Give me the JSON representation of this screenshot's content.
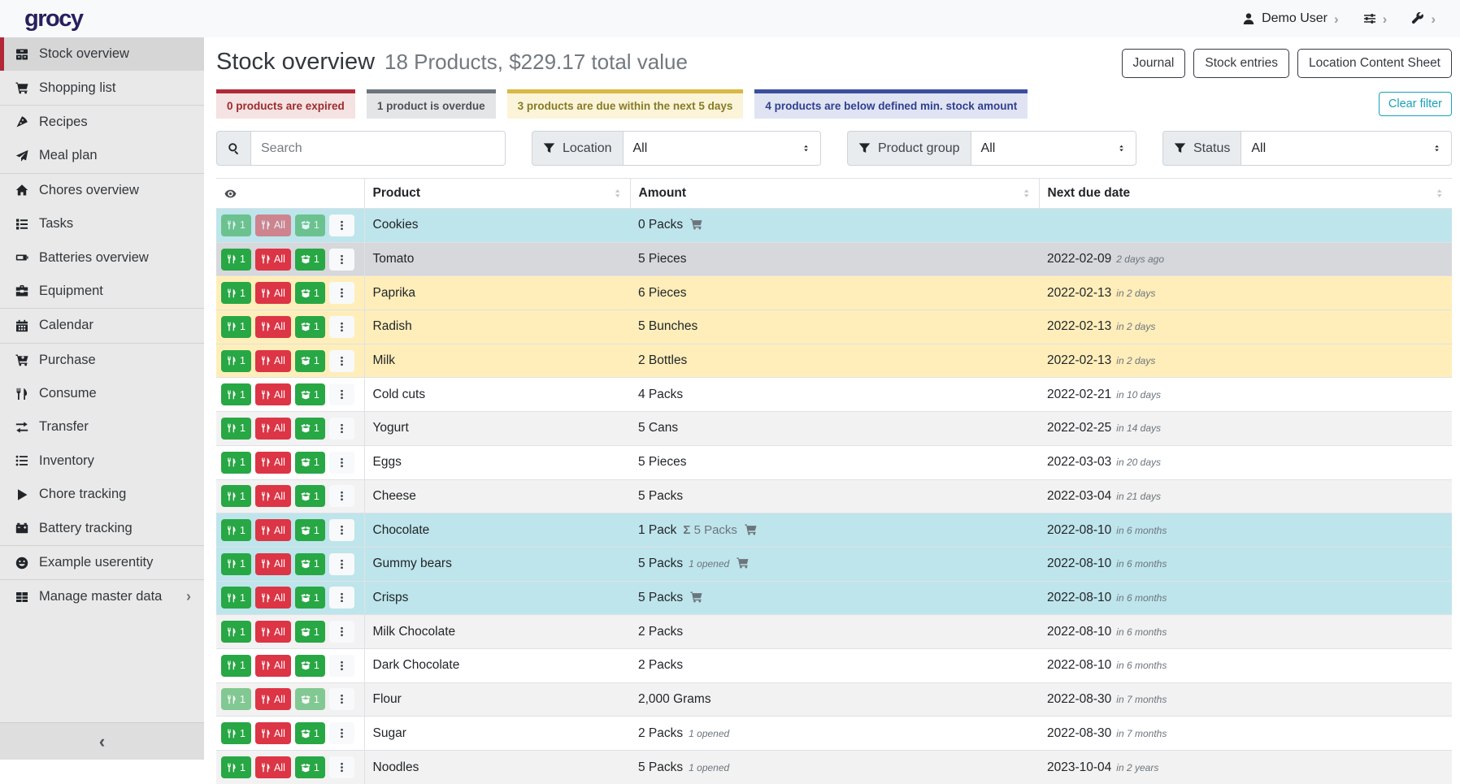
{
  "navbar": {
    "logo": "grocy",
    "user_label": "Demo User"
  },
  "sidebar": {
    "items": [
      {
        "label": "Stock overview",
        "icon": "stock-overview-icon",
        "active": true
      },
      {
        "label": "Shopping list",
        "icon": "shopping-cart-icon",
        "divider_after": true
      },
      {
        "label": "Recipes",
        "icon": "pizza-slice-icon"
      },
      {
        "label": "Meal plan",
        "icon": "paper-plane-icon",
        "divider_after": true
      },
      {
        "label": "Chores overview",
        "icon": "home-icon"
      },
      {
        "label": "Tasks",
        "icon": "tasks-icon"
      },
      {
        "label": "Batteries overview",
        "icon": "battery-icon"
      },
      {
        "label": "Equipment",
        "icon": "toolbox-icon",
        "divider_after": true
      },
      {
        "label": "Calendar",
        "icon": "calendar-icon",
        "divider_after": true
      },
      {
        "label": "Purchase",
        "icon": "cart-plus-icon"
      },
      {
        "label": "Consume",
        "icon": "utensils-icon"
      },
      {
        "label": "Transfer",
        "icon": "transfer-icon"
      },
      {
        "label": "Inventory",
        "icon": "list-icon"
      },
      {
        "label": "Chore tracking",
        "icon": "play-icon"
      },
      {
        "label": "Battery tracking",
        "icon": "car-battery-icon",
        "divider_after": true
      },
      {
        "label": "Example userentity",
        "icon": "smiley-icon",
        "divider_after": true
      },
      {
        "label": "Manage master data",
        "icon": "table-icon",
        "chevron": true
      }
    ]
  },
  "header": {
    "title": "Stock overview",
    "subtitle": "18 Products, $229.17 total value",
    "buttons": [
      "Journal",
      "Stock entries",
      "Location Content Sheet"
    ]
  },
  "filters": {
    "status_cards": [
      {
        "label": "0 products are expired",
        "type": "expired"
      },
      {
        "label": "1 product is overdue",
        "type": "overdue"
      },
      {
        "label": "3 products are due within the next 5 days",
        "type": "due-soon"
      },
      {
        "label": "4 products are below defined min. stock amount",
        "type": "below-min"
      }
    ],
    "clear_label": "Clear filter",
    "search_placeholder": "Search",
    "dropdowns": [
      {
        "label": "Location",
        "value": "All"
      },
      {
        "label": "Product group",
        "value": "All"
      },
      {
        "label": "Status",
        "value": "All"
      }
    ]
  },
  "table": {
    "columns": [
      "Product",
      "Amount",
      "Next due date"
    ],
    "row_buttons": [
      {
        "name": "consume-one-button",
        "label": "1",
        "color": "green",
        "icon": "utensils-icon"
      },
      {
        "name": "consume-all-button",
        "label": "All",
        "color": "red",
        "icon": "utensils-icon"
      },
      {
        "name": "open-one-button",
        "label": "1",
        "color": "green",
        "icon": "box-open-icon"
      }
    ],
    "rows": [
      {
        "product": "Cookies",
        "amount": "0 Packs",
        "cart": true,
        "date": "",
        "relative": "",
        "highlight": "info",
        "faded": [
          0,
          1,
          2
        ]
      },
      {
        "product": "Tomato",
        "amount": "5 Pieces",
        "date": "2022-02-09",
        "relative": "2 days ago",
        "highlight": "secondary"
      },
      {
        "product": "Paprika",
        "amount": "6 Pieces",
        "date": "2022-02-13",
        "relative": "in 2 days",
        "highlight": "warning"
      },
      {
        "product": "Radish",
        "amount": "5 Bunches",
        "date": "2022-02-13",
        "relative": "in 2 days",
        "highlight": "warning"
      },
      {
        "product": "Milk",
        "amount": "2 Bottles",
        "date": "2022-02-13",
        "relative": "in 2 days",
        "highlight": "warning"
      },
      {
        "product": "Cold cuts",
        "amount": "4 Packs",
        "date": "2022-02-21",
        "relative": "in 10 days"
      },
      {
        "product": "Yogurt",
        "amount": "5 Cans",
        "date": "2022-02-25",
        "relative": "in 14 days"
      },
      {
        "product": "Eggs",
        "amount": "5 Pieces",
        "date": "2022-03-03",
        "relative": "in 20 days"
      },
      {
        "product": "Cheese",
        "amount": "5 Packs",
        "date": "2022-03-04",
        "relative": "in 21 days"
      },
      {
        "product": "Chocolate",
        "amount": "1 Pack",
        "sum": "5 Packs",
        "cart": true,
        "date": "2022-08-10",
        "relative": "in 6 months",
        "highlight": "info"
      },
      {
        "product": "Gummy bears",
        "amount": "5 Packs",
        "note": "1 opened",
        "cart": true,
        "date": "2022-08-10",
        "relative": "in 6 months",
        "highlight": "info"
      },
      {
        "product": "Crisps",
        "amount": "5 Packs",
        "cart": true,
        "date": "2022-08-10",
        "relative": "in 6 months",
        "highlight": "info"
      },
      {
        "product": "Milk Chocolate",
        "amount": "2 Packs",
        "date": "2022-08-10",
        "relative": "in 6 months"
      },
      {
        "product": "Dark Chocolate",
        "amount": "2 Packs",
        "date": "2022-08-10",
        "relative": "in 6 months"
      },
      {
        "product": "Flour",
        "amount": "2,000 Grams",
        "date": "2022-08-30",
        "relative": "in 7 months",
        "faded": [
          0,
          2
        ]
      },
      {
        "product": "Sugar",
        "amount": "2 Packs",
        "note": "1 opened",
        "date": "2022-08-30",
        "relative": "in 7 months"
      },
      {
        "product": "Noodles",
        "amount": "5 Packs",
        "note": "1 opened",
        "date": "2023-10-04",
        "relative": "in 2 years"
      }
    ]
  },
  "colors": {
    "brand_navy": "#26205e",
    "active_red": "#b32638",
    "green": "#28a745",
    "red": "#dc3545",
    "teal": "#17a2b8",
    "row_info": "#bee5eb",
    "row_secondary": "#d6d8db",
    "row_warning": "#ffeeba",
    "row_stripe": "#f2f2f2",
    "card_expired_border": "#b02a37",
    "card_expired_bg": "#f5e2e2",
    "card_expired_text": "#9b2c2c",
    "card_overdue_border": "#6c757d",
    "card_overdue_bg": "#e4e5e7",
    "card_overdue_text": "#4b5157",
    "card_due_border": "#d9b843",
    "card_due_bg": "#fcf4d9",
    "card_due_text": "#857b26",
    "card_min_border": "#3b4ea0",
    "card_min_bg": "#e0e4f2",
    "card_min_text": "#2f3f8f"
  }
}
